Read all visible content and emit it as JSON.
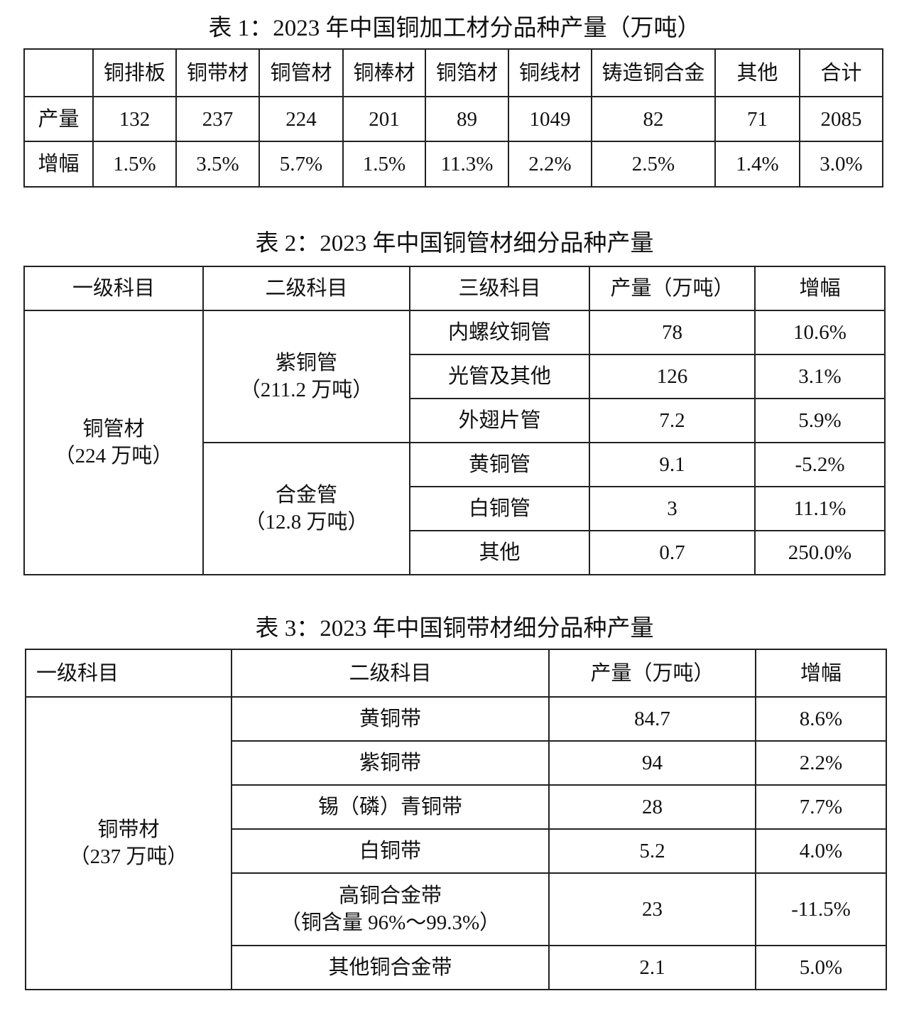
{
  "table1": {
    "title": "表 1：2023 年中国铜加工材分品种产量（万吨）",
    "headers": [
      "",
      "铜排板",
      "铜带材",
      "铜管材",
      "铜棒材",
      "铜箔材",
      "铜线材",
      "铸造铜合金",
      "其他",
      "合计"
    ],
    "rows": [
      {
        "label": "产量",
        "values": [
          "132",
          "237",
          "224",
          "201",
          "89",
          "1049",
          "82",
          "71",
          "2085"
        ]
      },
      {
        "label": "增幅",
        "values": [
          "1.5%",
          "3.5%",
          "5.7%",
          "1.5%",
          "11.3%",
          "2.2%",
          "2.5%",
          "1.4%",
          "3.0%"
        ]
      }
    ]
  },
  "table2": {
    "title": "表 2：2023 年中国铜管材细分品种产量",
    "headers": [
      "一级科目",
      "二级科目",
      "三级科目",
      "产量（万吨）",
      "增幅"
    ],
    "level1": {
      "name": "铜管材",
      "sub": "（224 万吨）"
    },
    "groups": [
      {
        "name": "紫铜管",
        "sub": "（211.2 万吨）",
        "rows": [
          [
            "内螺纹铜管",
            "78",
            "10.6%"
          ],
          [
            "光管及其他",
            "126",
            "3.1%"
          ],
          [
            "外翅片管",
            "7.2",
            "5.9%"
          ]
        ]
      },
      {
        "name": "合金管",
        "sub": "（12.8 万吨）",
        "rows": [
          [
            "黄铜管",
            "9.1",
            "-5.2%"
          ],
          [
            "白铜管",
            "3",
            "11.1%"
          ],
          [
            "其他",
            "0.7",
            "250.0%"
          ]
        ]
      }
    ]
  },
  "table3": {
    "title": "表 3：2023 年中国铜带材细分品种产量",
    "headers": [
      "一级科目",
      "二级科目",
      "产量（万吨）",
      "增幅"
    ],
    "level1": {
      "name": "铜带材",
      "sub": "（237 万吨）"
    },
    "rows": [
      {
        "name": "黄铜带",
        "sub": "",
        "value": "84.7",
        "growth": "8.6%"
      },
      {
        "name": "紫铜带",
        "sub": "",
        "value": "94",
        "growth": "2.2%"
      },
      {
        "name": "锡（磷）青铜带",
        "sub": "",
        "value": "28",
        "growth": "7.7%"
      },
      {
        "name": "白铜带",
        "sub": "",
        "value": "5.2",
        "growth": "4.0%"
      },
      {
        "name": "高铜合金带",
        "sub": "（铜含量 96%～99.3%）",
        "value": "23",
        "growth": "-11.5%"
      },
      {
        "name": "其他铜合金带",
        "sub": "",
        "value": "2.1",
        "growth": "5.0%"
      }
    ]
  }
}
